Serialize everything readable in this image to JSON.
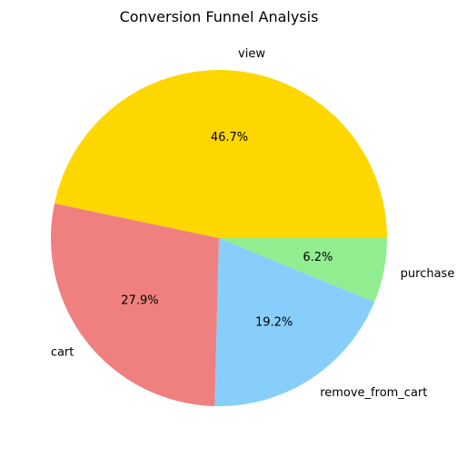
{
  "chart_data": {
    "type": "pie",
    "title": "Conversion Funnel Analysis",
    "slices": [
      {
        "label": "view",
        "value": 46.7,
        "pct_label": "46.7%",
        "color": "#FFD700"
      },
      {
        "label": "cart",
        "value": 27.9,
        "pct_label": "27.9%",
        "color": "#F08080"
      },
      {
        "label": "remove_from_cart",
        "value": 19.2,
        "pct_label": "19.2%",
        "color": "#87CEFA"
      },
      {
        "label": "purchase",
        "value": 6.2,
        "pct_label": "6.2%",
        "color": "#90EE90"
      }
    ],
    "start_angle_deg": 0,
    "direction": "counterclockwise",
    "legend": "none"
  }
}
